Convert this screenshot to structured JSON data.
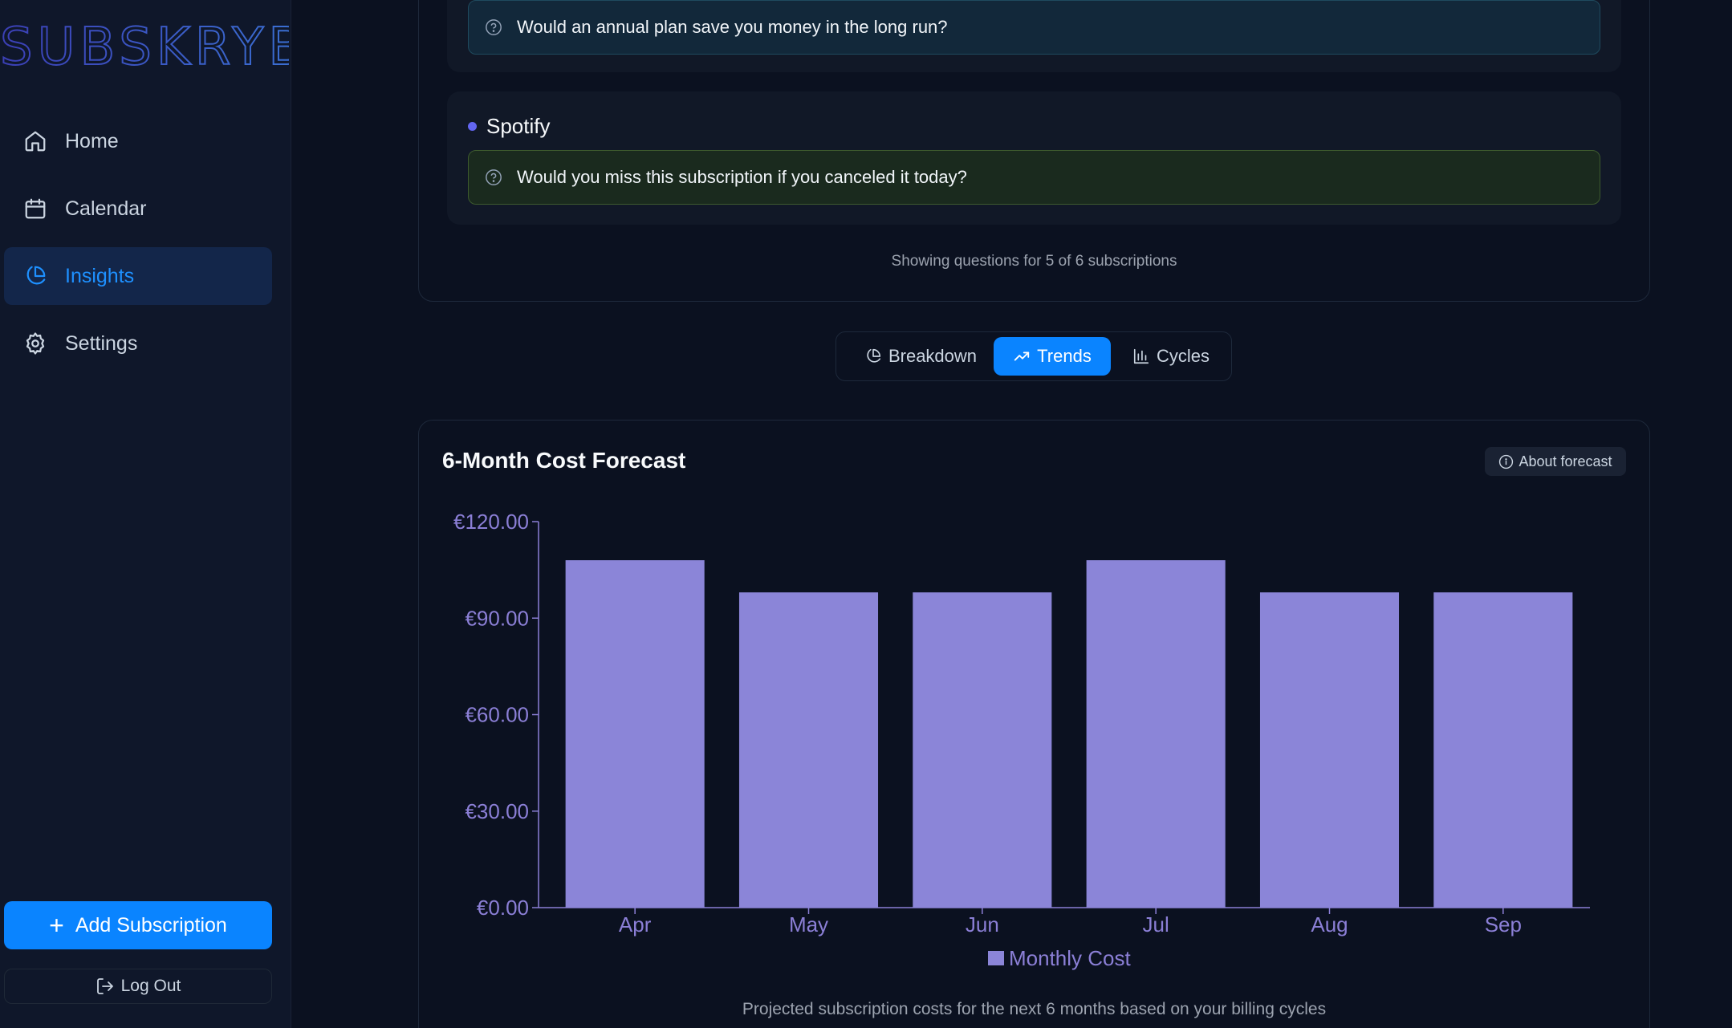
{
  "app": {
    "logo_text": "SUBSKRYBD"
  },
  "sidebar": {
    "items": [
      {
        "label": "Home",
        "icon": "home-icon",
        "active": false
      },
      {
        "label": "Calendar",
        "icon": "calendar-icon",
        "active": false
      },
      {
        "label": "Insights",
        "icon": "pie-chart-icon",
        "active": true
      },
      {
        "label": "Settings",
        "icon": "gear-icon",
        "active": false
      }
    ],
    "add_label": "Add Subscription",
    "logout_label": "Log Out"
  },
  "questions": {
    "groups": [
      {
        "name": "",
        "question": "Would an annual plan save you money in the long run?"
      },
      {
        "name": "Spotify",
        "question": "Would you miss this subscription if you canceled it today?"
      }
    ],
    "footer": "Showing questions for 5 of 6 subscriptions"
  },
  "tabs": [
    {
      "label": "Breakdown",
      "icon": "pie-chart-icon",
      "active": false
    },
    {
      "label": "Trends",
      "icon": "trending-up-icon",
      "active": true
    },
    {
      "label": "Cycles",
      "icon": "bar-chart-icon",
      "active": false
    }
  ],
  "forecast": {
    "title": "6-Month Cost Forecast",
    "about_label": "About forecast",
    "caption": "Projected subscription costs for the next 6 months based on your billing cycles"
  },
  "colors": {
    "accent": "#0a84ff",
    "bar": "#8b85d8",
    "axis": "#8b7fd6"
  },
  "chart_data": {
    "type": "bar",
    "categories": [
      "Apr",
      "May",
      "Jun",
      "Jul",
      "Aug",
      "Sep"
    ],
    "series": [
      {
        "name": "Monthly Cost",
        "values": [
          108,
          98,
          98,
          108,
          98,
          98
        ]
      }
    ],
    "y_ticks": [
      "€0.00",
      "€30.00",
      "€60.00",
      "€90.00",
      "€120.00"
    ],
    "ylim": [
      0,
      120
    ],
    "legend": "bottom",
    "grid": false
  }
}
